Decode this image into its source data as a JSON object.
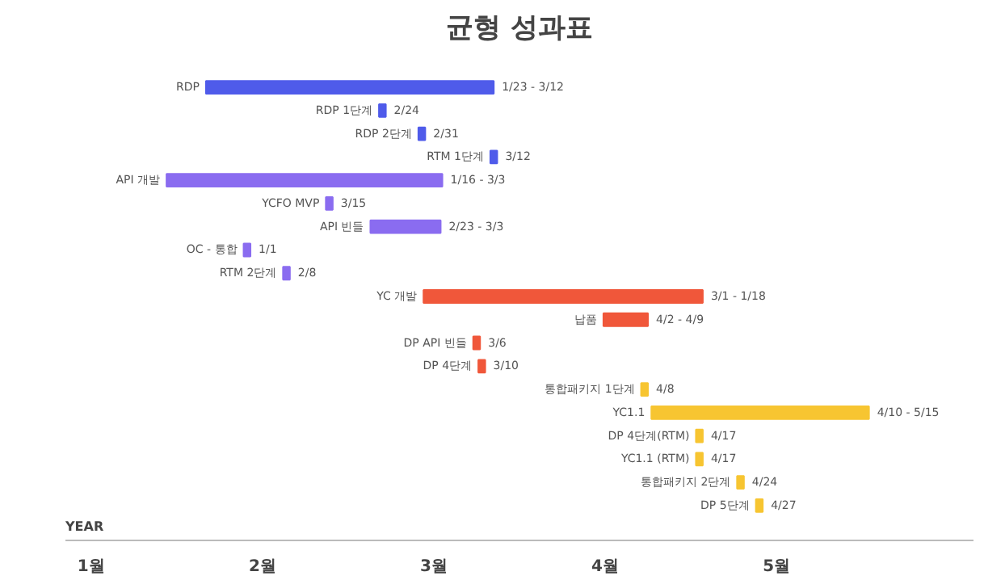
{
  "chart_data": {
    "type": "bar",
    "orientation": "horizontal",
    "title": "균형 성과표",
    "categories": [
      "RDP",
      "RDP 1단계",
      "RDP 2단계",
      "RTM 1단계",
      "API 개발",
      "YCFO MVP",
      "API 빈들",
      "OC - 통합",
      "RTM 2단계",
      "YC 개발",
      "납품",
      "DP API 빈들",
      "DP 4단계",
      "통합패키지 1단계",
      "YC1.1",
      "DP 4단계(RTM)",
      "YC1.1 (RTM)",
      "통합패키지 2단계",
      "DP 5단계"
    ],
    "base": [
      1.67,
      2.68,
      2.91,
      3.33,
      1.44,
      2.37,
      2.63,
      1.89,
      2.12,
      2.94,
      3.99,
      3.23,
      3.26,
      4.21,
      4.27,
      4.53,
      4.53,
      4.77,
      4.88
    ],
    "values": [
      1.68,
      0.04,
      0.04,
      0.04,
      1.61,
      0.04,
      0.41,
      0.04,
      0.04,
      1.63,
      0.26,
      0.04,
      0.04,
      0.04,
      1.27,
      0.04,
      0.04,
      0.04,
      0.04
    ],
    "colors": [
      "#4f5bea",
      "#4f5bea",
      "#4f5bea",
      "#4f5bea",
      "#8a6cf0",
      "#8a6cf0",
      "#8a6cf0",
      "#8a6cf0",
      "#8a6cf0",
      "#f0573a",
      "#f0573a",
      "#f0573a",
      "#f0573a",
      "#f7c531",
      "#f7c531",
      "#f7c531",
      "#f7c531",
      "#f7c531",
      "#f7c531"
    ],
    "xlim": [
      0.85,
      6.15
    ],
    "xticks": [
      {
        "value": 1,
        "label": "1월"
      },
      {
        "value": 2,
        "label": "2월"
      },
      {
        "value": 3,
        "label": "3월"
      },
      {
        "value": 4,
        "label": "4월"
      },
      {
        "value": 5,
        "label": "5월"
      }
    ],
    "tick_labels": "x",
    "grid": false,
    "annotations": [
      "YEAR",
      {
        "text": "1/23 - 3/12",
        "x": 3.35,
        "y": "RDP"
      },
      {
        "text": "2/24",
        "x": 2.72,
        "y": "RDP 1단계"
      },
      {
        "text": "2/31",
        "x": 2.95,
        "y": "RDP 2단계"
      },
      {
        "text": "3/12",
        "x": 3.37,
        "y": "RTM 1단계"
      },
      {
        "text": "1/16 - 3/3",
        "x": 3.05,
        "y": "API 개발"
      },
      {
        "text": "3/15",
        "x": 2.41,
        "y": "YCFO MVP"
      },
      {
        "text": "2/23 - 3/3",
        "x": 3.04,
        "y": "API 빈들"
      },
      {
        "text": "1/1",
        "x": 1.93,
        "y": "OC - 통합"
      },
      {
        "text": "2/8",
        "x": 2.16,
        "y": "RTM 2단계"
      },
      {
        "text": "3/1 - 1/18",
        "x": 4.57,
        "y": "YC 개발"
      },
      {
        "text": "4/2 - 4/9",
        "x": 4.25,
        "y": "납품"
      },
      {
        "text": "3/6",
        "x": 3.27,
        "y": "DP API 빈들"
      },
      {
        "text": "3/10",
        "x": 3.3,
        "y": "DP 4단계"
      },
      {
        "text": "4/8",
        "x": 4.25,
        "y": "통합패키지 1단계"
      },
      {
        "text": "4/10 - 5/15",
        "x": 5.54,
        "y": "YC1.1"
      },
      {
        "text": "4/17",
        "x": 4.57,
        "y": "DP 4단계(RTM)"
      },
      {
        "text": "4/17",
        "x": 4.57,
        "y": "YC1.1 (RTM)"
      },
      {
        "text": "4/24",
        "x": 4.81,
        "y": "통합패키지 2단계"
      },
      {
        "text": "4/27",
        "x": 4.92,
        "y": "DP 5단계"
      }
    ]
  }
}
